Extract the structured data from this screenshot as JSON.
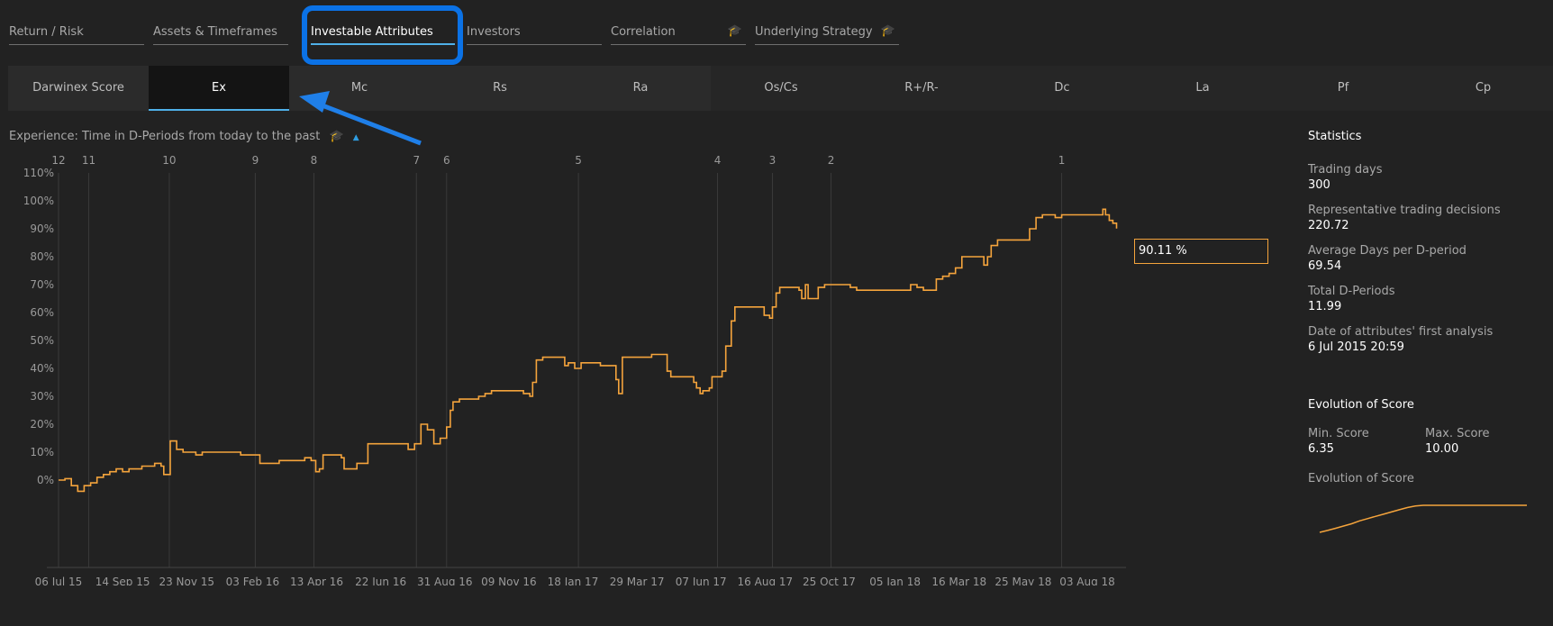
{
  "top_tabs": [
    {
      "label": "Return / Risk",
      "active": false,
      "hat": false
    },
    {
      "label": "Assets & Timeframes",
      "active": false,
      "hat": false
    },
    {
      "label": "Investable Attributes",
      "active": true,
      "hat": false
    },
    {
      "label": "Investors",
      "active": false,
      "hat": false
    },
    {
      "label": "Correlation",
      "active": false,
      "hat": true
    },
    {
      "label": "Underlying Strategy",
      "active": false,
      "hat": true
    }
  ],
  "sub_tabs": [
    "Darwinex Score",
    "Ex",
    "Mc",
    "Rs",
    "Ra",
    "Os/Cs",
    "R+/R-",
    "Dc",
    "La",
    "Pf",
    "Cp"
  ],
  "active_sub_tab": "Ex",
  "section_title": "Experience: Time in D-Periods from today to the past",
  "colors": {
    "line": "#f5a43c",
    "accent": "#4fb0e8",
    "icon": "#2f9de0",
    "highlight": "#0b72e6"
  },
  "icons": {
    "education": "graduation-cap-icon",
    "collapse": "caret-up-icon"
  },
  "chart_data": {
    "type": "line",
    "x_tick_labels": [
      "06 Jul 15",
      "14 Sep 15",
      "23 Nov 15",
      "03 Feb 16",
      "13 Apr 16",
      "22 Jun 16",
      "31 Aug 16",
      "09 Nov 16",
      "18 Jan 17",
      "29 Mar 17",
      "07 Jun 17",
      "16 Aug 17",
      "25 Oct 17",
      "05 Jan 18",
      "16 Mar 18",
      "25 May 18",
      "03 Aug 18"
    ],
    "y_ticks": [
      0,
      10,
      20,
      30,
      40,
      50,
      60,
      70,
      80,
      90,
      100,
      110
    ],
    "y_unit": "%",
    "ylim": [
      -6,
      110
    ],
    "period_markers": [
      {
        "label": "12",
        "x": "06 Jul 15"
      },
      {
        "label": "11",
        "x": "08 Aug 15"
      },
      {
        "label": "10",
        "x": "04 Nov 15"
      },
      {
        "label": "9",
        "x": "06 Feb 16"
      },
      {
        "label": "8",
        "x": "10 Apr 16"
      },
      {
        "label": "7",
        "x": "31 Jul 16"
      },
      {
        "label": "6",
        "x": "02 Sep 16"
      },
      {
        "label": "5",
        "x": "24 Jan 17"
      },
      {
        "label": "4",
        "x": "25 Jun 17"
      },
      {
        "label": "3",
        "x": "24 Aug 17"
      },
      {
        "label": "2",
        "x": "27 Oct 17"
      },
      {
        "label": "1",
        "x": "06 Jul 18"
      }
    ],
    "series": [
      {
        "points": [
          [
            "06 Jul 15",
            0
          ],
          [
            "13 Jul 15",
            0.5
          ],
          [
            "20 Jul 15",
            -2
          ],
          [
            "27 Jul 15",
            -4
          ],
          [
            "03 Aug 15",
            -2
          ],
          [
            "10 Aug 15",
            -1
          ],
          [
            "17 Aug 15",
            1
          ],
          [
            "24 Aug 15",
            2
          ],
          [
            "31 Aug 15",
            3
          ],
          [
            "07 Sep 15",
            4
          ],
          [
            "14 Sep 15",
            3
          ],
          [
            "21 Sep 15",
            4
          ],
          [
            "28 Sep 15",
            4
          ],
          [
            "05 Oct 15",
            5
          ],
          [
            "12 Oct 15",
            5
          ],
          [
            "19 Oct 15",
            6
          ],
          [
            "26 Oct 15",
            5
          ],
          [
            "29 Oct 15",
            2
          ],
          [
            "02 Nov 15",
            2
          ],
          [
            "05 Nov 15",
            14
          ],
          [
            "12 Nov 15",
            11
          ],
          [
            "19 Nov 15",
            10
          ],
          [
            "26 Nov 15",
            10
          ],
          [
            "03 Dec 15",
            9
          ],
          [
            "10 Dec 15",
            10
          ],
          [
            "24 Dec 15",
            10
          ],
          [
            "07 Jan 16",
            10
          ],
          [
            "21 Jan 16",
            9
          ],
          [
            "04 Feb 16",
            9
          ],
          [
            "11 Feb 16",
            6
          ],
          [
            "18 Feb 16",
            6
          ],
          [
            "25 Feb 16",
            6
          ],
          [
            "03 Mar 16",
            7
          ],
          [
            "10 Mar 16",
            7
          ],
          [
            "24 Mar 16",
            7
          ],
          [
            "31 Mar 16",
            8
          ],
          [
            "07 Apr 16",
            7
          ],
          [
            "12 Apr 16",
            3
          ],
          [
            "16 Apr 16",
            4
          ],
          [
            "20 Apr 16",
            9
          ],
          [
            "27 Apr 16",
            9
          ],
          [
            "05 May 16",
            9
          ],
          [
            "10 May 16",
            8
          ],
          [
            "13 May 16",
            4
          ],
          [
            "20 May 16",
            4
          ],
          [
            "27 May 16",
            6
          ],
          [
            "03 Jun 16",
            6
          ],
          [
            "08 Jun 16",
            13
          ],
          [
            "17 Jun 16",
            13
          ],
          [
            "24 Jun 16",
            13
          ],
          [
            "01 Jul 16",
            13
          ],
          [
            "15 Jul 16",
            13
          ],
          [
            "22 Jul 16",
            11
          ],
          [
            "29 Jul 16",
            13
          ],
          [
            "05 Aug 16",
            20
          ],
          [
            "12 Aug 16",
            18
          ],
          [
            "19 Aug 16",
            13
          ],
          [
            "26 Aug 16",
            15
          ],
          [
            "02 Sep 16",
            19
          ],
          [
            "06 Sep 16",
            25
          ],
          [
            "09 Sep 16",
            28
          ],
          [
            "16 Sep 16",
            29
          ],
          [
            "30 Sep 16",
            29
          ],
          [
            "07 Oct 16",
            30
          ],
          [
            "14 Oct 16",
            31
          ],
          [
            "21 Oct 16",
            32
          ],
          [
            "04 Nov 16",
            32
          ],
          [
            "18 Nov 16",
            32
          ],
          [
            "25 Nov 16",
            31
          ],
          [
            "02 Dec 16",
            30
          ],
          [
            "05 Dec 16",
            35
          ],
          [
            "09 Dec 16",
            43
          ],
          [
            "16 Dec 16",
            44
          ],
          [
            "30 Dec 16",
            44
          ],
          [
            "06 Jan 17",
            44
          ],
          [
            "09 Jan 17",
            41
          ],
          [
            "13 Jan 17",
            42
          ],
          [
            "20 Jan 17",
            40
          ],
          [
            "27 Jan 17",
            42
          ],
          [
            "03 Feb 17",
            42
          ],
          [
            "10 Feb 17",
            42
          ],
          [
            "17 Feb 17",
            41
          ],
          [
            "24 Feb 17",
            41
          ],
          [
            "03 Mar 17",
            41
          ],
          [
            "06 Mar 17",
            36
          ],
          [
            "09 Mar 17",
            31
          ],
          [
            "13 Mar 17",
            44
          ],
          [
            "24 Mar 17",
            44
          ],
          [
            "07 Apr 17",
            44
          ],
          [
            "14 Apr 17",
            45
          ],
          [
            "21 Apr 17",
            45
          ],
          [
            "28 Apr 17",
            45
          ],
          [
            "01 May 17",
            39
          ],
          [
            "05 May 17",
            37
          ],
          [
            "12 May 17",
            37
          ],
          [
            "19 May 17",
            37
          ],
          [
            "26 May 17",
            37
          ],
          [
            "30 May 17",
            35
          ],
          [
            "02 Jun 17",
            33
          ],
          [
            "06 Jun 17",
            31
          ],
          [
            "09 Jun 17",
            32
          ],
          [
            "16 Jun 17",
            33
          ],
          [
            "19 Jun 17",
            37
          ],
          [
            "23 Jun 17",
            37
          ],
          [
            "30 Jun 17",
            39
          ],
          [
            "04 Jul 17",
            48
          ],
          [
            "10 Jul 17",
            57
          ],
          [
            "14 Jul 17",
            62
          ],
          [
            "21 Jul 17",
            62
          ],
          [
            "04 Aug 17",
            62
          ],
          [
            "11 Aug 17",
            62
          ],
          [
            "15 Aug 17",
            59
          ],
          [
            "21 Aug 17",
            58
          ],
          [
            "24 Aug 17",
            62
          ],
          [
            "28 Aug 17",
            67
          ],
          [
            "01 Sep 17",
            69
          ],
          [
            "08 Sep 17",
            69
          ],
          [
            "15 Sep 17",
            69
          ],
          [
            "22 Sep 17",
            68
          ],
          [
            "25 Sep 17",
            65
          ],
          [
            "29 Sep 17",
            70
          ],
          [
            "02 Oct 17",
            65
          ],
          [
            "06 Oct 17",
            65
          ],
          [
            "13 Oct 17",
            69
          ],
          [
            "20 Oct 17",
            70
          ],
          [
            "03 Nov 17",
            70
          ],
          [
            "17 Nov 17",
            69
          ],
          [
            "24 Nov 17",
            68
          ],
          [
            "08 Dec 17",
            68
          ],
          [
            "22 Dec 17",
            68
          ],
          [
            "05 Jan 18",
            68
          ],
          [
            "19 Jan 18",
            68
          ],
          [
            "22 Jan 18",
            70
          ],
          [
            "29 Jan 18",
            69
          ],
          [
            "05 Feb 18",
            68
          ],
          [
            "12 Feb 18",
            68
          ],
          [
            "19 Feb 18",
            72
          ],
          [
            "26 Feb 18",
            73
          ],
          [
            "05 Mar 18",
            74
          ],
          [
            "12 Mar 18",
            76
          ],
          [
            "19 Mar 18",
            80
          ],
          [
            "26 Mar 18",
            80
          ],
          [
            "02 Apr 18",
            80
          ],
          [
            "09 Apr 18",
            80
          ],
          [
            "12 Apr 18",
            77
          ],
          [
            "16 Apr 18",
            80
          ],
          [
            "20 Apr 18",
            84
          ],
          [
            "27 Apr 18",
            86
          ],
          [
            "04 May 18",
            86
          ],
          [
            "11 May 18",
            86
          ],
          [
            "18 May 18",
            86
          ],
          [
            "25 May 18",
            86
          ],
          [
            "28 May 18",
            86
          ],
          [
            "01 Jun 18",
            90
          ],
          [
            "08 Jun 18",
            94
          ],
          [
            "15 Jun 18",
            95
          ],
          [
            "22 Jun 18",
            95
          ],
          [
            "29 Jun 18",
            94
          ],
          [
            "06 Jul 18",
            95
          ],
          [
            "13 Jul 18",
            95
          ],
          [
            "20 Jul 18",
            95
          ],
          [
            "27 Jul 18",
            95
          ],
          [
            "03 Aug 18",
            95
          ],
          [
            "10 Aug 18",
            95
          ],
          [
            "17 Aug 18",
            95
          ],
          [
            "20 Aug 18",
            97
          ],
          [
            "23 Aug 18",
            95
          ],
          [
            "27 Aug 18",
            93
          ],
          [
            "31 Aug 18",
            92
          ],
          [
            "04 Sep 18",
            90.11
          ]
        ]
      }
    ],
    "current_value_label": "90.11 %"
  },
  "stats": {
    "title": "Statistics",
    "items": [
      {
        "label": "Trading days",
        "value": "300"
      },
      {
        "label": "Representative trading decisions",
        "value": "220.72"
      },
      {
        "label": "Average Days per D-period",
        "value": "69.54"
      },
      {
        "label": "Total D-Periods",
        "value": "11.99"
      },
      {
        "label": "Date of attributes' first analysis",
        "value": "6 Jul 2015 20:59"
      }
    ]
  },
  "evolution": {
    "title": "Evolution of Score",
    "min_label": "Min. Score",
    "min_value": "6.35",
    "max_label": "Max. Score",
    "max_value": "10.00",
    "sub_label": "Evolution of Score",
    "sparkline": [
      6.35,
      6.6,
      6.9,
      7.2,
      7.5,
      7.9,
      8.2,
      8.5,
      8.8,
      9.1,
      9.4,
      9.7,
      9.9,
      10,
      10,
      10,
      10,
      10,
      10,
      10,
      10,
      10,
      10,
      10,
      10,
      10,
      10
    ]
  }
}
